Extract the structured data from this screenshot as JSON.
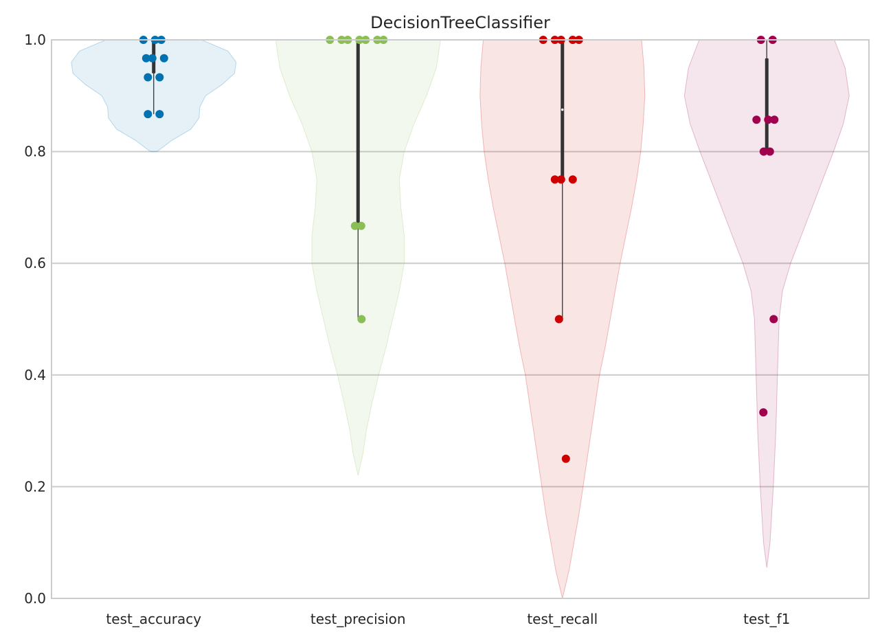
{
  "chart_data": {
    "type": "violin",
    "title": "DecisionTreeClassifier",
    "xlabel": "",
    "ylabel": "",
    "ylim": [
      0,
      1
    ],
    "yticks": [
      0.0,
      0.2,
      0.4,
      0.6,
      0.8,
      1.0
    ],
    "ytick_labels": [
      "0.0",
      "0.2",
      "0.4",
      "0.6",
      "0.8",
      "1.0"
    ],
    "grid": "horizontal",
    "categories": [
      "test_accuracy",
      "test_precision",
      "test_recall",
      "test_f1"
    ],
    "series": [
      {
        "category": "test_accuracy",
        "color": "#0072B2",
        "points": [
          1.0,
          1.0,
          1.0,
          0.967,
          0.967,
          0.967,
          0.933,
          0.933,
          0.867,
          0.867
        ],
        "whisker": [
          0.867,
          1.0
        ],
        "box": [
          0.94,
          1.0
        ],
        "median": 0.967,
        "density_range": [
          0.8,
          1.0
        ],
        "density": [
          [
            0.8,
            0.04
          ],
          [
            0.82,
            0.22
          ],
          [
            0.84,
            0.45
          ],
          [
            0.86,
            0.55
          ],
          [
            0.88,
            0.56
          ],
          [
            0.9,
            0.63
          ],
          [
            0.92,
            0.83
          ],
          [
            0.94,
            0.98
          ],
          [
            0.96,
            1.0
          ],
          [
            0.98,
            0.9
          ],
          [
            1.0,
            0.58
          ]
        ]
      },
      {
        "category": "test_precision",
        "color": "#8BBF56",
        "points": [
          1.0,
          1.0,
          1.0,
          1.0,
          1.0,
          1.0,
          1.0,
          0.667,
          0.667,
          0.5
        ],
        "whisker": [
          0.5,
          1.0
        ],
        "box": [
          0.667,
          1.0
        ],
        "median": 1.0,
        "density_range": [
          0.22,
          1.0
        ],
        "density": [
          [
            0.22,
            0.0
          ],
          [
            0.26,
            0.06
          ],
          [
            0.3,
            0.1
          ],
          [
            0.35,
            0.17
          ],
          [
            0.4,
            0.25
          ],
          [
            0.45,
            0.34
          ],
          [
            0.5,
            0.42
          ],
          [
            0.55,
            0.5
          ],
          [
            0.6,
            0.56
          ],
          [
            0.65,
            0.56
          ],
          [
            0.7,
            0.52
          ],
          [
            0.75,
            0.5
          ],
          [
            0.8,
            0.56
          ],
          [
            0.85,
            0.68
          ],
          [
            0.9,
            0.83
          ],
          [
            0.95,
            0.95
          ],
          [
            1.0,
            1.0
          ]
        ]
      },
      {
        "category": "test_recall",
        "color": "#CC0000",
        "points": [
          1.0,
          1.0,
          1.0,
          1.0,
          1.0,
          0.75,
          0.75,
          0.75,
          0.5,
          0.25
        ],
        "whisker": [
          0.5,
          1.0
        ],
        "box": [
          0.75,
          1.0
        ],
        "median": 0.875,
        "density_range": [
          0.0,
          1.0
        ],
        "density": [
          [
            0.0,
            0.0
          ],
          [
            0.05,
            0.08
          ],
          [
            0.1,
            0.14
          ],
          [
            0.15,
            0.2
          ],
          [
            0.2,
            0.25
          ],
          [
            0.25,
            0.3
          ],
          [
            0.3,
            0.35
          ],
          [
            0.35,
            0.4
          ],
          [
            0.4,
            0.45
          ],
          [
            0.45,
            0.52
          ],
          [
            0.5,
            0.58
          ],
          [
            0.55,
            0.64
          ],
          [
            0.6,
            0.7
          ],
          [
            0.65,
            0.77
          ],
          [
            0.7,
            0.84
          ],
          [
            0.75,
            0.9
          ],
          [
            0.8,
            0.95
          ],
          [
            0.85,
            0.98
          ],
          [
            0.9,
            1.0
          ],
          [
            0.95,
            0.99
          ],
          [
            1.0,
            0.96
          ]
        ]
      },
      {
        "category": "test_f1",
        "color": "#A0004D",
        "points": [
          1.0,
          1.0,
          0.857,
          0.857,
          0.857,
          0.8,
          0.8,
          0.5,
          0.333
        ],
        "whisker": [
          0.8,
          1.0
        ],
        "box": [
          0.8,
          0.967
        ],
        "median": 0.857,
        "density_range": [
          0.055,
          1.0
        ],
        "density": [
          [
            0.055,
            0.0
          ],
          [
            0.1,
            0.04
          ],
          [
            0.2,
            0.08
          ],
          [
            0.3,
            0.11
          ],
          [
            0.4,
            0.13
          ],
          [
            0.45,
            0.14
          ],
          [
            0.5,
            0.15
          ],
          [
            0.55,
            0.19
          ],
          [
            0.6,
            0.29
          ],
          [
            0.65,
            0.42
          ],
          [
            0.7,
            0.55
          ],
          [
            0.75,
            0.68
          ],
          [
            0.8,
            0.81
          ],
          [
            0.85,
            0.93
          ],
          [
            0.9,
            1.0
          ],
          [
            0.95,
            0.95
          ],
          [
            1.0,
            0.82
          ]
        ]
      }
    ]
  }
}
